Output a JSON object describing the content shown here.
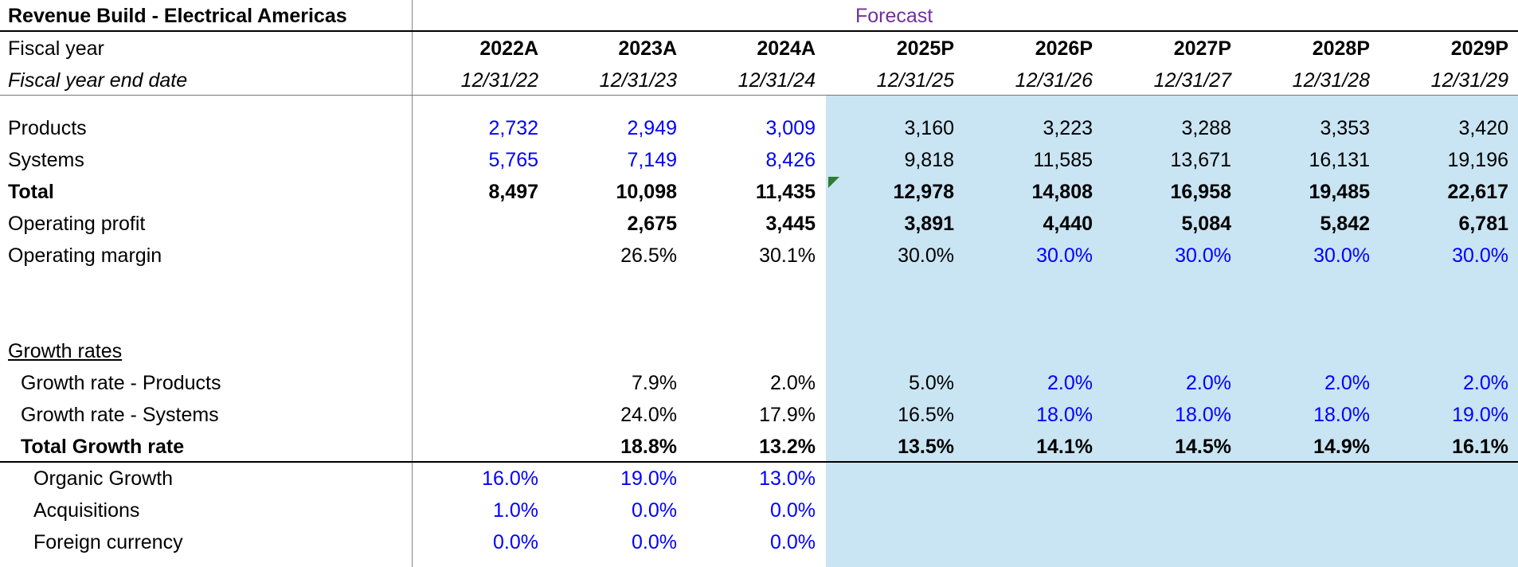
{
  "title": "Revenue Build - Electrical Americas",
  "forecast_label": "Forecast",
  "header": {
    "fiscal_year_label": "Fiscal year",
    "years": [
      "2022A",
      "2023A",
      "2024A",
      "2025P",
      "2026P",
      "2027P",
      "2028P",
      "2029P"
    ],
    "end_date_label": "Fiscal year end date",
    "end_dates": [
      "12/31/22",
      "12/31/23",
      "12/31/24",
      "12/31/25",
      "12/31/26",
      "12/31/27",
      "12/31/28",
      "12/31/29"
    ]
  },
  "rows": {
    "products": {
      "label": "Products",
      "values": [
        "2,732",
        "2,949",
        "3,009",
        "3,160",
        "3,223",
        "3,288",
        "3,353",
        "3,420"
      ]
    },
    "systems": {
      "label": "Systems",
      "values": [
        "5,765",
        "7,149",
        "8,426",
        "9,818",
        "11,585",
        "13,671",
        "16,131",
        "19,196"
      ]
    },
    "total": {
      "label": "Total",
      "values": [
        "8,497",
        "10,098",
        "11,435",
        "12,978",
        "14,808",
        "16,958",
        "19,485",
        "22,617"
      ]
    },
    "operating_profit": {
      "label": "Operating profit",
      "values": [
        "",
        "2,675",
        "3,445",
        "3,891",
        "4,440",
        "5,084",
        "5,842",
        "6,781"
      ]
    },
    "operating_margin": {
      "label": "Operating margin",
      "values": [
        "",
        "26.5%",
        "30.1%",
        "30.0%",
        "30.0%",
        "30.0%",
        "30.0%",
        "30.0%"
      ]
    },
    "growth_rates_heading": "Growth rates",
    "growth_products": {
      "label": "Growth rate - Products",
      "values": [
        "",
        "7.9%",
        "2.0%",
        "5.0%",
        "2.0%",
        "2.0%",
        "2.0%",
        "2.0%"
      ]
    },
    "growth_systems": {
      "label": "Growth rate - Systems",
      "values": [
        "",
        "24.0%",
        "17.9%",
        "16.5%",
        "18.0%",
        "18.0%",
        "18.0%",
        "19.0%"
      ]
    },
    "total_growth": {
      "label": "Total Growth rate",
      "values": [
        "",
        "18.8%",
        "13.2%",
        "13.5%",
        "14.1%",
        "14.5%",
        "14.9%",
        "16.1%"
      ]
    },
    "organic_growth": {
      "label": "Organic Growth",
      "values": [
        "16.0%",
        "19.0%",
        "13.0%"
      ]
    },
    "acquisitions": {
      "label": "Acquisitions",
      "values": [
        "1.0%",
        "0.0%",
        "0.0%"
      ]
    },
    "foreign_currency": {
      "label": "Foreign currency",
      "values": [
        "0.0%",
        "0.0%",
        "0.0%"
      ]
    }
  },
  "colors": {
    "input_blue": "#0000ff",
    "forecast_purple": "#7030a0",
    "forecast_fill": "#c9e4f2"
  }
}
